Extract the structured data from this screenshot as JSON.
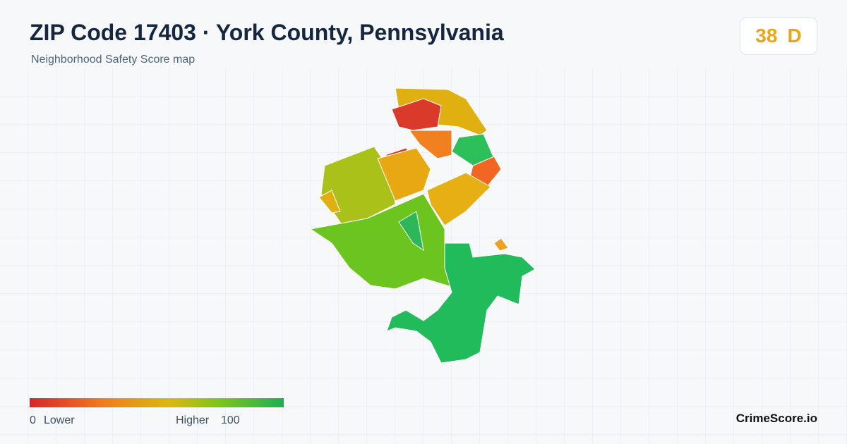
{
  "header": {
    "title": "ZIP Code 17403 · York County, Pennsylvania",
    "subtitle": "Neighborhood Safety Score map"
  },
  "score": {
    "value": 38,
    "grade": "D"
  },
  "legend": {
    "min": 0,
    "min_label": "Lower",
    "max_label": "Higher",
    "max": 100
  },
  "footer": {
    "brand": "CrimeScore.io"
  }
}
